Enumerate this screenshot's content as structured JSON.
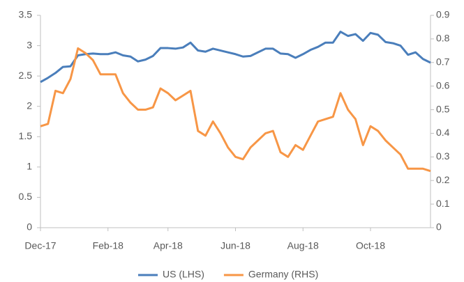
{
  "chart_data": {
    "type": "line",
    "categories": [
      "Dec-17",
      null,
      null,
      null,
      null,
      null,
      null,
      null,
      null,
      "Feb-18",
      null,
      null,
      null,
      null,
      null,
      null,
      null,
      "Apr-18",
      null,
      null,
      null,
      null,
      null,
      null,
      null,
      null,
      "Jun-18",
      null,
      null,
      null,
      null,
      null,
      null,
      null,
      null,
      "Aug-18",
      null,
      null,
      null,
      null,
      null,
      null,
      null,
      null,
      "Oct-18",
      null,
      null,
      null,
      null,
      null,
      null,
      null,
      null
    ],
    "series": [
      {
        "name": "US (LHS)",
        "color": "#4a7ebb",
        "axis": "y",
        "values": [
          2.4,
          2.47,
          2.55,
          2.65,
          2.66,
          2.84,
          2.86,
          2.87,
          2.86,
          2.86,
          2.89,
          2.84,
          2.82,
          2.74,
          2.77,
          2.83,
          2.96,
          2.96,
          2.95,
          2.97,
          3.05,
          2.92,
          2.9,
          2.95,
          2.92,
          2.89,
          2.86,
          2.82,
          2.83,
          2.89,
          2.95,
          2.95,
          2.87,
          2.86,
          2.8,
          2.86,
          2.93,
          2.98,
          3.05,
          3.05,
          3.23,
          3.16,
          3.19,
          3.08,
          3.21,
          3.18,
          3.06,
          3.04,
          3.0,
          2.85,
          2.89,
          2.78,
          2.72
        ]
      },
      {
        "name": "Germany (RHS)",
        "color": "#f79646",
        "axis": "y2",
        "values": [
          0.43,
          0.44,
          0.58,
          0.57,
          0.63,
          0.76,
          0.74,
          0.71,
          0.65,
          0.65,
          0.65,
          0.57,
          0.53,
          0.5,
          0.5,
          0.51,
          0.59,
          0.57,
          0.54,
          0.56,
          0.58,
          0.41,
          0.39,
          0.45,
          0.4,
          0.34,
          0.3,
          0.29,
          0.34,
          0.37,
          0.4,
          0.41,
          0.32,
          0.3,
          0.35,
          0.33,
          0.39,
          0.45,
          0.46,
          0.47,
          0.57,
          0.5,
          0.46,
          0.35,
          0.43,
          0.41,
          0.37,
          0.34,
          0.31,
          0.25,
          0.25,
          0.25,
          0.24
        ]
      }
    ],
    "ylim": [
      0,
      3.5
    ],
    "yticks": [
      0,
      0.5,
      1,
      1.5,
      2,
      2.5,
      3,
      3.5
    ],
    "y2lim": [
      0,
      0.9
    ],
    "y2ticks": [
      0,
      0.1,
      0.2,
      0.3,
      0.4,
      0.5,
      0.6,
      0.7,
      0.8,
      0.9
    ],
    "legend": "bottom",
    "grid": false
  }
}
